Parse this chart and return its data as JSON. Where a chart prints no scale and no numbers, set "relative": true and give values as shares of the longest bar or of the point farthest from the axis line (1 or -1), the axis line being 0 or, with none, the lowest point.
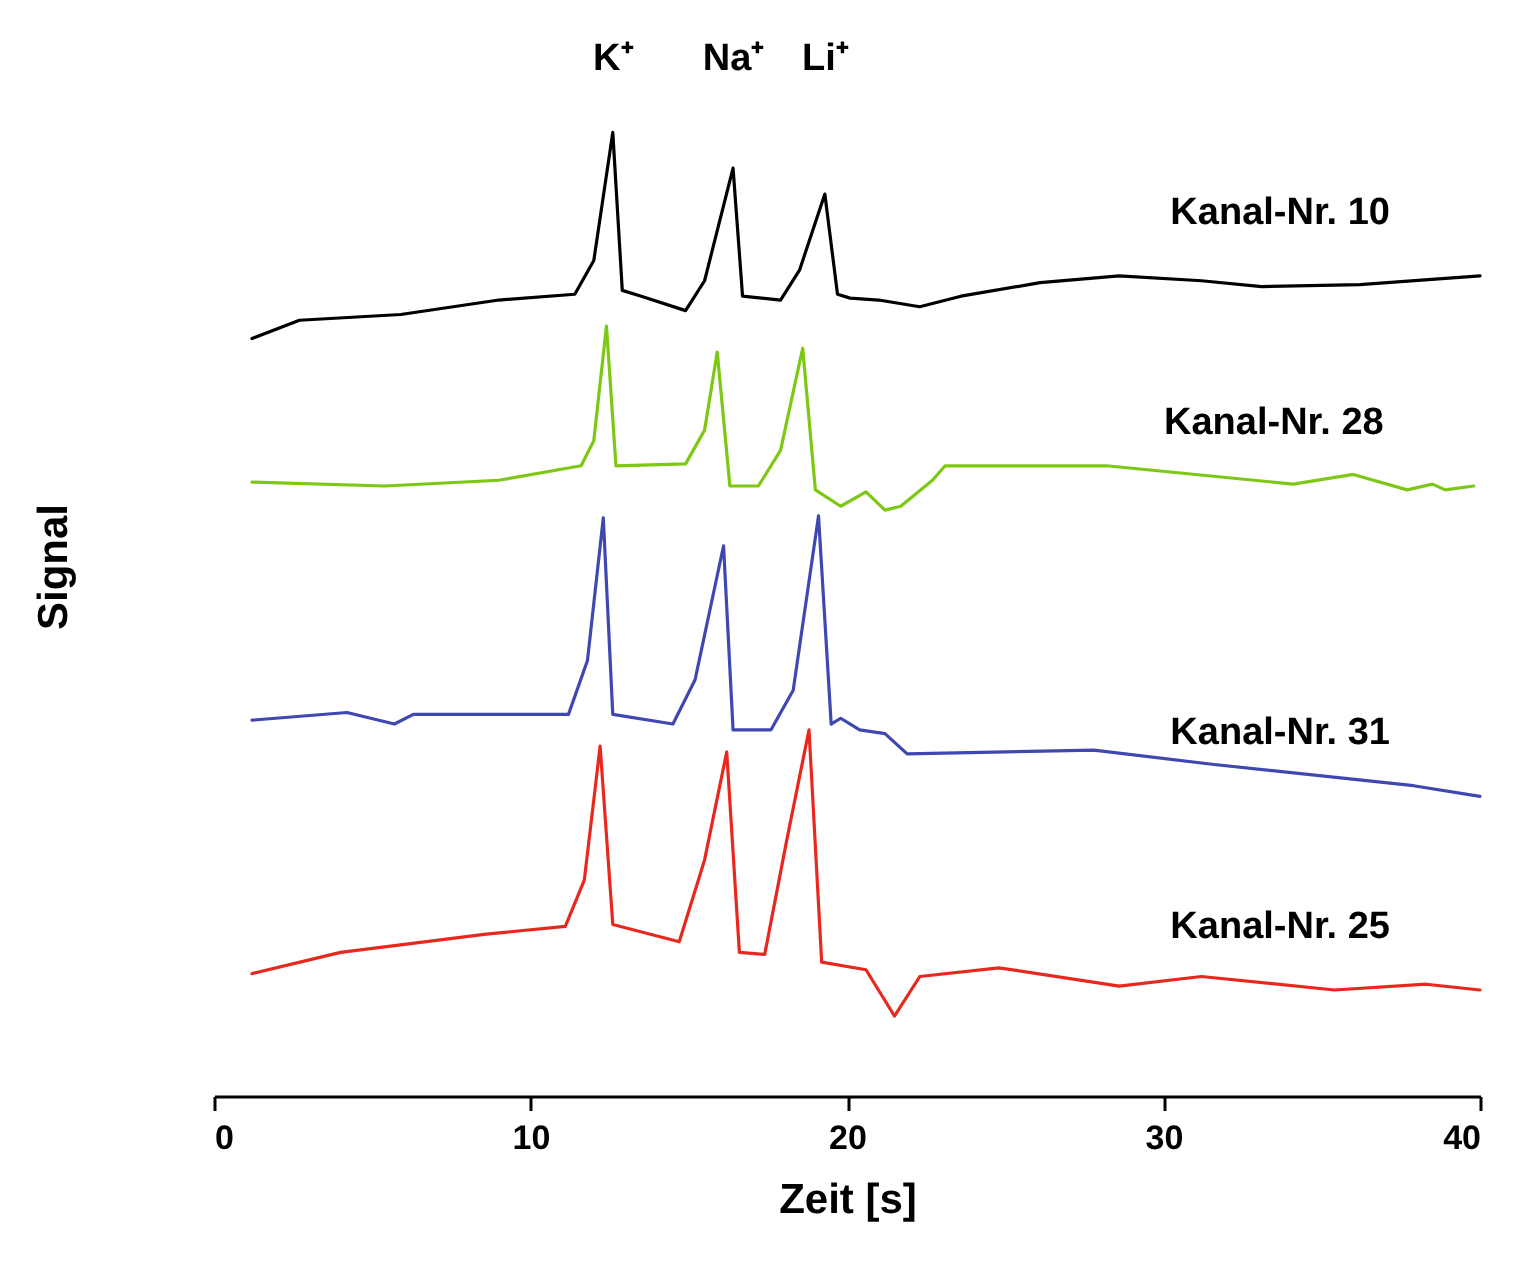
{
  "chart_data": {
    "type": "line",
    "relative": true,
    "xlabel": "Zeit [s]",
    "ylabel": "Signal",
    "xlim": [
      0,
      40
    ],
    "xticks": [
      0,
      10,
      20,
      30,
      40
    ],
    "grid": false,
    "line_style": "solid",
    "annotations": [
      "K⁺",
      "Na⁺",
      "Li⁺"
    ],
    "series": [
      {
        "name": "Kanal-Nr. 10",
        "color": "#000000",
        "x": [
          1.2,
          2.7,
          5.9,
          9.0,
          11.4,
          12.0,
          12.6,
          12.9,
          13.5,
          14.9,
          15.5,
          16.4,
          16.7,
          17.9,
          18.5,
          19.3,
          19.7,
          20.1,
          21.0,
          22.3,
          23.6,
          26.1,
          28.6,
          31.2,
          33.1,
          36.2,
          40.0
        ],
        "values": [
          0.786,
          0.805,
          0.811,
          0.826,
          0.832,
          0.867,
          1.0,
          0.836,
          0.83,
          0.815,
          0.846,
          0.963,
          0.83,
          0.826,
          0.857,
          0.936,
          0.832,
          0.828,
          0.826,
          0.819,
          0.83,
          0.844,
          0.851,
          0.846,
          0.84,
          0.842,
          0.851
        ]
      },
      {
        "name": "Kanal-Nr. 28",
        "color": "#7dc814",
        "x": [
          1.2,
          5.4,
          9.0,
          11.6,
          12.0,
          12.4,
          12.7,
          14.9,
          15.5,
          15.9,
          16.3,
          17.2,
          17.9,
          18.6,
          19.0,
          19.8,
          20.6,
          21.2,
          21.7,
          22.7,
          23.1,
          28.2,
          34.1,
          36.0,
          37.7,
          38.5,
          38.9,
          39.8
        ],
        "values": [
          0.637,
          0.633,
          0.639,
          0.654,
          0.68,
          0.799,
          0.654,
          0.656,
          0.691,
          0.772,
          0.633,
          0.633,
          0.67,
          0.776,
          0.629,
          0.612,
          0.627,
          0.608,
          0.612,
          0.639,
          0.654,
          0.654,
          0.635,
          0.645,
          0.629,
          0.635,
          0.629,
          0.633
        ]
      },
      {
        "name": "Kanal-Nr. 31",
        "color": "#3f48b0",
        "x": [
          1.2,
          4.2,
          5.7,
          6.3,
          11.2,
          11.8,
          12.3,
          12.6,
          14.5,
          15.2,
          16.1,
          16.4,
          17.6,
          18.3,
          19.1,
          19.5,
          19.8,
          20.4,
          21.2,
          21.9,
          27.8,
          31.6,
          37.9,
          40.0
        ],
        "values": [
          0.39,
          0.398,
          0.386,
          0.396,
          0.396,
          0.452,
          0.6,
          0.396,
          0.386,
          0.432,
          0.571,
          0.38,
          0.38,
          0.421,
          0.602,
          0.386,
          0.392,
          0.38,
          0.376,
          0.355,
          0.359,
          0.344,
          0.322,
          0.311
        ]
      },
      {
        "name": "Kanal-Nr. 25",
        "color": "#e8281e",
        "x": [
          1.2,
          4.0,
          8.6,
          11.1,
          11.7,
          12.2,
          12.6,
          14.7,
          15.5,
          16.2,
          16.6,
          17.4,
          18.1,
          18.8,
          19.2,
          20.6,
          21.5,
          22.3,
          24.8,
          28.6,
          31.2,
          35.4,
          38.3,
          40.0
        ],
        "values": [
          0.127,
          0.149,
          0.168,
          0.176,
          0.224,
          0.363,
          0.178,
          0.16,
          0.245,
          0.357,
          0.149,
          0.147,
          0.266,
          0.38,
          0.139,
          0.131,
          0.083,
          0.124,
          0.133,
          0.114,
          0.124,
          0.11,
          0.116,
          0.11
        ]
      }
    ]
  }
}
